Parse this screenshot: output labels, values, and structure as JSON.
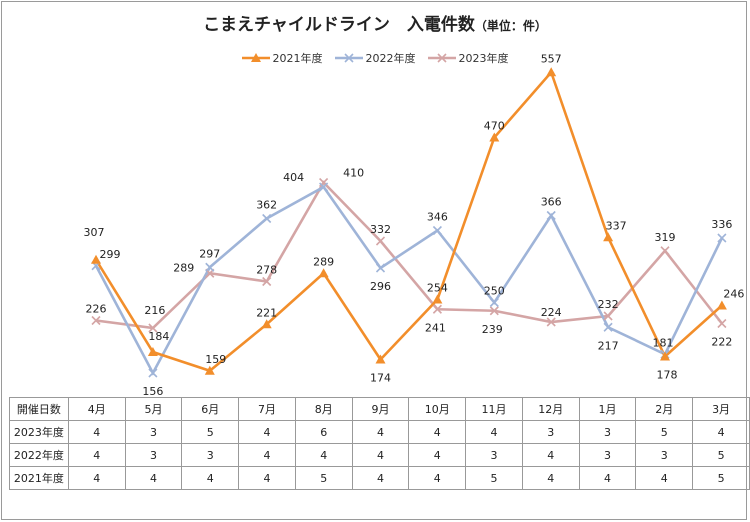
{
  "title": "こまえチャイルドライン　入電件数",
  "unit": "（単位：件）",
  "chart_data": {
    "type": "line",
    "categories": [
      "4月",
      "5月",
      "6月",
      "7月",
      "8月",
      "9月",
      "10月",
      "11月",
      "12月",
      "1月",
      "2月",
      "3月"
    ],
    "ylim": [
      0,
      600
    ],
    "grid": false,
    "legend": "top",
    "series": [
      {
        "name": "2021年度",
        "color": "#f28e2b",
        "marker": "triangle",
        "values": [
          307,
          184,
          159,
          221,
          289,
          174,
          254,
          470,
          557,
          337,
          178,
          246
        ]
      },
      {
        "name": "2022年度",
        "color": "#9fb4d8",
        "marker": "x",
        "values": [
          299,
          156,
          297,
          362,
          404,
          296,
          346,
          250,
          366,
          217,
          181,
          336
        ]
      },
      {
        "name": "2023年度",
        "color": "#d4a5a5",
        "marker": "x",
        "values": [
          226,
          216,
          289,
          278,
          410,
          332,
          241,
          239,
          224,
          232,
          319,
          222
        ]
      }
    ]
  },
  "table": {
    "header_label": "開催日数",
    "months": [
      "4月",
      "5月",
      "6月",
      "7月",
      "8月",
      "9月",
      "10月",
      "11月",
      "12月",
      "1月",
      "2月",
      "3月"
    ],
    "rows": [
      {
        "label": "2023年度",
        "values": [
          "4",
          "3",
          "5",
          "4",
          "6",
          "4",
          "4",
          "4",
          "3",
          "3",
          "5",
          "4"
        ]
      },
      {
        "label": "2022年度",
        "values": [
          "4",
          "3",
          "3",
          "4",
          "4",
          "4",
          "4",
          "3",
          "4",
          "3",
          "3",
          "5"
        ]
      },
      {
        "label": "2021年度",
        "values": [
          "4",
          "4",
          "4",
          "4",
          "5",
          "4",
          "4",
          "5",
          "4",
          "4",
          "4",
          "5"
        ]
      }
    ]
  }
}
